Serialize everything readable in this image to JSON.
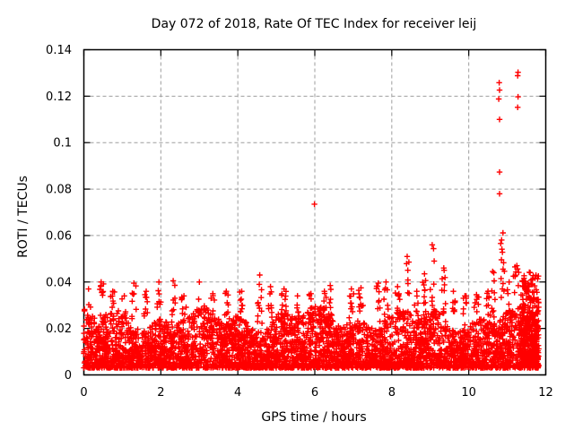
{
  "figure": {
    "background": "#ffffff"
  },
  "chart_data": {
    "type": "scatter",
    "title": "Day 072 of 2018, Rate Of TEC Index for receiver leij",
    "xlabel": "GPS time / hours",
    "ylabel": "ROTI / TECUs",
    "xlim": [
      0,
      12
    ],
    "ylim": [
      0,
      0.14
    ],
    "xticks": [
      0,
      2,
      4,
      6,
      8,
      10,
      12
    ],
    "xtick_labels": [
      "0",
      "2",
      "4",
      "6",
      "8",
      "10",
      "12"
    ],
    "yticks": [
      0,
      0.02,
      0.04,
      0.06,
      0.08,
      0.1,
      0.12,
      0.14
    ],
    "ytick_labels": [
      "0",
      "0.02",
      "0.04",
      "0.06",
      "0.08",
      "0.1",
      "0.12",
      "0.14"
    ],
    "grid": {
      "style": "dashed",
      "color": "#9e9e9e"
    },
    "axis_color": "#000000",
    "legend": "none",
    "marker": {
      "shape": "plus",
      "color": "#ff0000",
      "half_size_px": 3.2
    },
    "seed": 20180072,
    "band": {
      "x_min": 0,
      "x_max": 11.82,
      "y_min": 0.003,
      "top_base": 0.0245,
      "top_wave1": [
        0.0035,
        2.3,
        0.7
      ],
      "top_wave2": [
        0.0025,
        6.1,
        2.1
      ],
      "power": 1.75,
      "n_points": 4200
    },
    "spike_base": 0.021,
    "spikes": [
      [
        0.12,
        0.037
      ],
      [
        0.45,
        0.04
      ],
      [
        0.75,
        0.036
      ],
      [
        1.05,
        0.034
      ],
      [
        1.3,
        0.0395
      ],
      [
        1.62,
        0.036
      ],
      [
        1.95,
        0.04
      ],
      [
        2.32,
        0.0405
      ],
      [
        2.6,
        0.034
      ],
      [
        3.0,
        0.04
      ],
      [
        3.35,
        0.035
      ],
      [
        3.7,
        0.036
      ],
      [
        4.1,
        0.036
      ],
      [
        4.57,
        0.043
      ],
      [
        4.85,
        0.038
      ],
      [
        5.2,
        0.037
      ],
      [
        5.55,
        0.034
      ],
      [
        5.9,
        0.035
      ],
      [
        6.25,
        0.036
      ],
      [
        6.4,
        0.0385
      ],
      [
        6.95,
        0.037
      ],
      [
        7.2,
        0.0375
      ],
      [
        7.65,
        0.0395
      ],
      [
        7.85,
        0.04
      ],
      [
        8.15,
        0.038
      ],
      [
        8.4,
        0.051
      ],
      [
        8.65,
        0.036
      ],
      [
        8.85,
        0.0435
      ],
      [
        9.05,
        0.056
      ],
      [
        9.35,
        0.046
      ],
      [
        9.6,
        0.036
      ],
      [
        9.9,
        0.034
      ],
      [
        10.2,
        0.0345
      ],
      [
        10.5,
        0.036
      ],
      [
        10.65,
        0.044
      ],
      [
        11.05,
        0.04
      ],
      [
        11.25,
        0.047
      ]
    ],
    "streak": {
      "x": 10.88,
      "y_min": 0.033,
      "y_max": 0.061,
      "n": 14,
      "x_jitter": 0.05
    },
    "right_cluster": {
      "x_min": 11.35,
      "x_max": 11.82,
      "y_min": 0.004,
      "y_max": 0.0455,
      "n": 300,
      "power": 1.7
    },
    "outliers": [
      [
        5.99,
        0.0735
      ],
      [
        10.8,
        0.078
      ],
      [
        10.8,
        0.0873
      ],
      [
        10.8,
        0.11
      ],
      [
        10.78,
        0.1188
      ],
      [
        10.8,
        0.1226
      ],
      [
        10.79,
        0.1258
      ],
      [
        11.27,
        0.1152
      ],
      [
        11.28,
        0.1197
      ],
      [
        11.27,
        0.1288
      ],
      [
        11.28,
        0.1303
      ],
      [
        10.62,
        0.0445
      ],
      [
        10.66,
        0.0405
      ],
      [
        11.2,
        0.0465
      ],
      [
        11.16,
        0.0425
      ]
    ]
  }
}
